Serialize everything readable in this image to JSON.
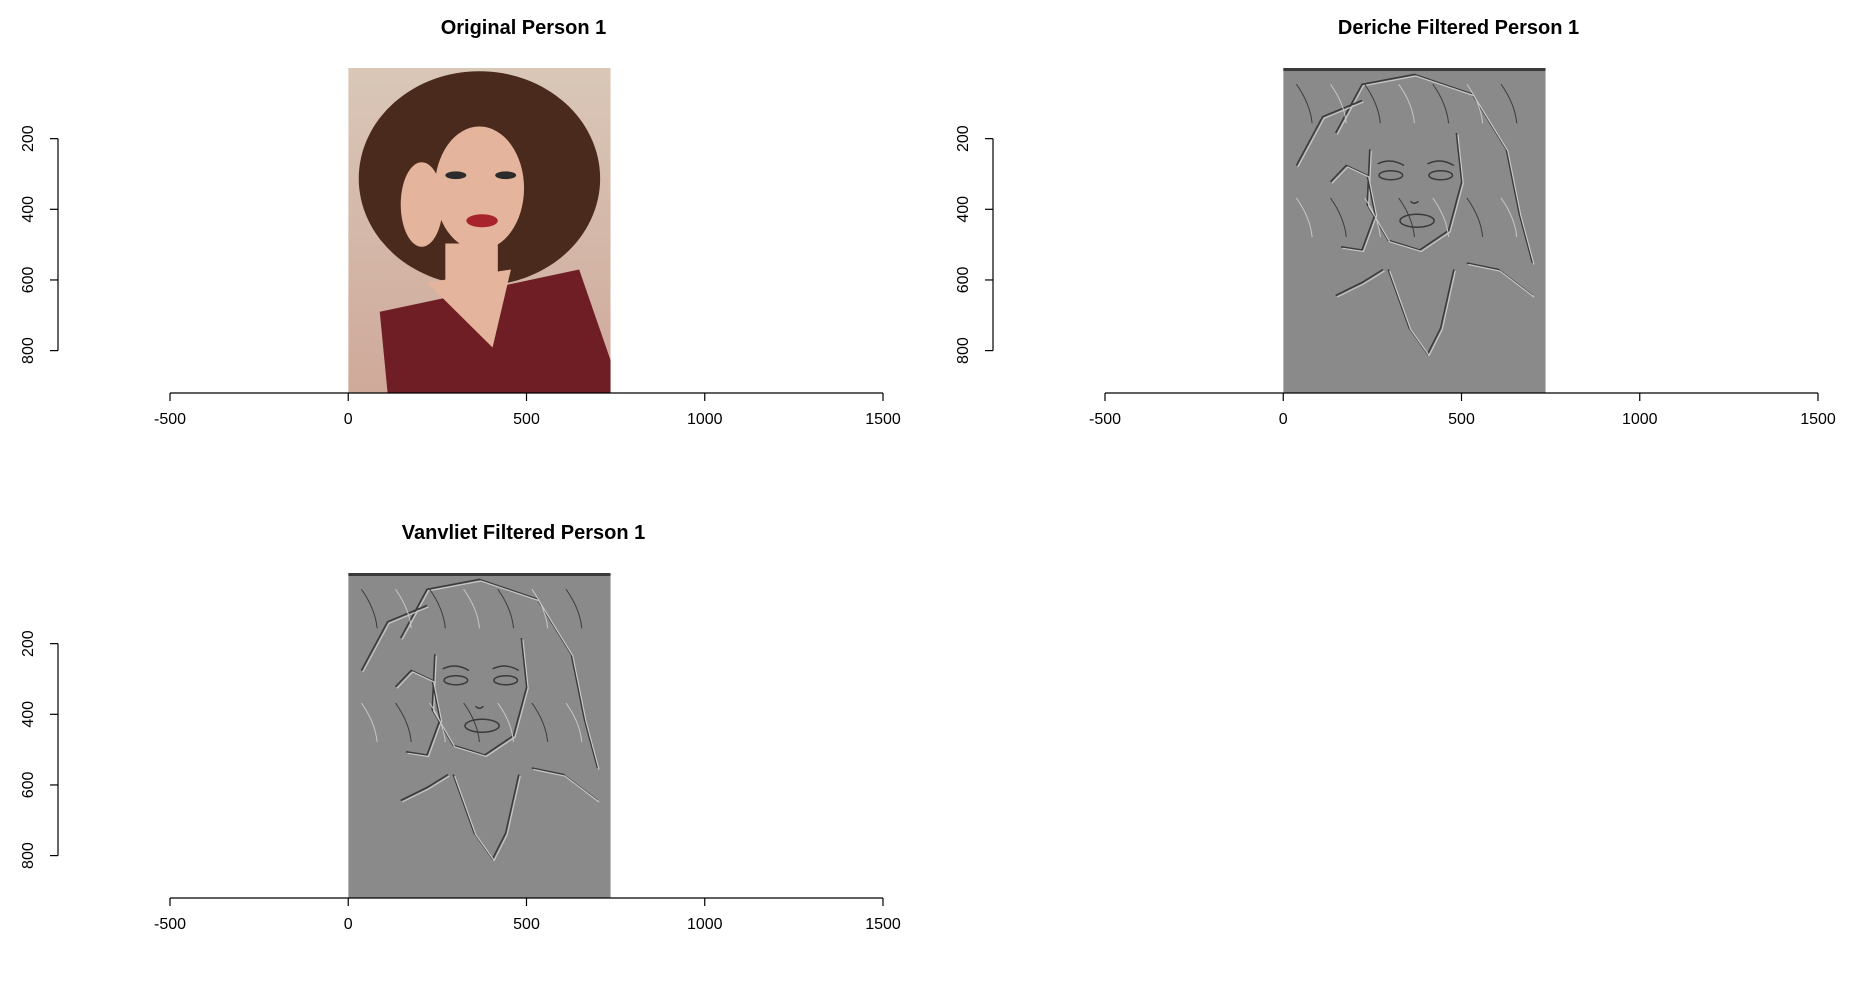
{
  "chart_data": [
    {
      "type": "image",
      "title": "Original Person 1",
      "image_rendering": "color photo",
      "image_extent": {
        "x": [
          0,
          736
        ],
        "y": [
          0,
          920
        ]
      },
      "xlim": [
        -500,
        1500
      ],
      "ylim": [
        920,
        0
      ],
      "xticks": [
        -500,
        0,
        500,
        1000,
        1500
      ],
      "yticks": [
        200,
        400,
        600,
        800
      ],
      "xtick_labels": [
        "-500",
        "0",
        "500",
        "1000",
        "1500"
      ],
      "ytick_labels": [
        "200",
        "400",
        "600",
        "800"
      ],
      "xlabel": "",
      "ylabel": "",
      "grid": false
    },
    {
      "type": "image",
      "title": "Deriche Filtered Person 1",
      "image_rendering": "grayscale edge relief",
      "image_extent": {
        "x": [
          0,
          736
        ],
        "y": [
          0,
          920
        ]
      },
      "xlim": [
        -500,
        1500
      ],
      "ylim": [
        920,
        0
      ],
      "xticks": [
        -500,
        0,
        500,
        1000,
        1500
      ],
      "yticks": [
        200,
        400,
        600,
        800
      ],
      "xtick_labels": [
        "-500",
        "0",
        "500",
        "1000",
        "1500"
      ],
      "ytick_labels": [
        "200",
        "400",
        "600",
        "800"
      ],
      "xlabel": "",
      "ylabel": "",
      "grid": false
    },
    {
      "type": "image",
      "title": "Vanvliet Filtered Person 1",
      "image_rendering": "grayscale edge relief",
      "image_extent": {
        "x": [
          0,
          736
        ],
        "y": [
          0,
          920
        ]
      },
      "xlim": [
        -500,
        1500
      ],
      "ylim": [
        920,
        0
      ],
      "xticks": [
        -500,
        0,
        500,
        1000,
        1500
      ],
      "yticks": [
        200,
        400,
        600,
        800
      ],
      "xtick_labels": [
        "-500",
        "0",
        "500",
        "1000",
        "1500"
      ],
      "ytick_labels": [
        "200",
        "400",
        "600",
        "800"
      ],
      "xlabel": "",
      "ylabel": "",
      "grid": false
    }
  ],
  "colors": {
    "photo_background_top": "#d9c7b8",
    "photo_background": "#cfa99a",
    "hair": "#4a2a1c",
    "skin": "#e5b49c",
    "shirt": "#6e1e24",
    "lips": "#a8242c",
    "filtered_gray": "#8a8a8a",
    "edge_dark": "#3a3a3a",
    "edge_light": "#c8c8c8"
  }
}
